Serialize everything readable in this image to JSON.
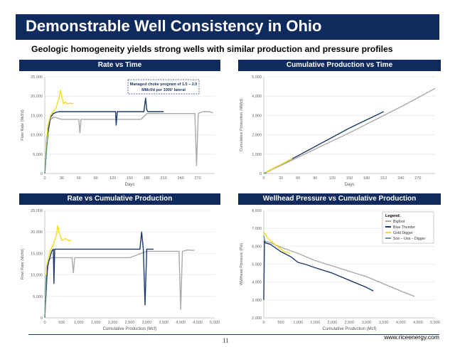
{
  "slide": {
    "title": "Demonstrable Well Consistency in Ohio",
    "subtitle": "Geologic homogeneity yields strong wells with similar production and pressure profiles",
    "page_number": "11",
    "website": "www.riceenergy.com"
  },
  "colors": {
    "navy": "#0f2a5c",
    "bigfoot": "#a9a9a9",
    "blue_thunder": "#1b3a6b",
    "gold_digger": "#f5dc1e",
    "son_uva_digger": "#5f9a96"
  },
  "chart_data": [
    {
      "type": "line",
      "title": "Rate vs Time",
      "xlabel": "Days",
      "ylabel": "Flow Rate (Mcf/d)",
      "xlim": [
        0,
        300
      ],
      "ylim": [
        0,
        25000
      ],
      "xticks": [
        0,
        30,
        60,
        90,
        120,
        150,
        180,
        210,
        240,
        270
      ],
      "xtick_labels": [
        "0",
        "30",
        "60",
        "90",
        "120",
        "150",
        "180",
        "210",
        "240",
        "270"
      ],
      "yticks": [
        0,
        5000,
        10000,
        15000,
        20000,
        25000
      ],
      "ytick_labels": [
        "0",
        "5,000",
        "10,000",
        "15,000",
        "20,000",
        "25,000"
      ],
      "annotation": [
        "Managed choke program of 1.5 – 2.0",
        "MMcf/d per 1000' lateral"
      ],
      "series": [
        {
          "name": "Bigfoot",
          "color": "#a9a9a9",
          "x": [
            0,
            3,
            6,
            10,
            15,
            20,
            25,
            30,
            40,
            50,
            60,
            62,
            64,
            70,
            80,
            90,
            100,
            110,
            120,
            130,
            140,
            150,
            160,
            170,
            180,
            190,
            200,
            210,
            220,
            230,
            240,
            250,
            260,
            265,
            268,
            271,
            275,
            280,
            290,
            297
          ],
          "y": [
            0,
            9000,
            12500,
            14000,
            14500,
            14500,
            14200,
            14000,
            14000,
            14000,
            14000,
            10500,
            14000,
            14000,
            14000,
            14000,
            14000,
            14000,
            14000,
            14000,
            14000,
            14000,
            14000,
            14000,
            15500,
            15500,
            15500,
            15500,
            15500,
            15500,
            15500,
            15500,
            15500,
            15500,
            2000,
            15500,
            15800,
            16000,
            16000,
            15700
          ]
        },
        {
          "name": "Blue Thunder",
          "color": "#1b3a6b",
          "x": [
            0,
            5,
            10,
            15,
            20,
            25,
            30,
            40,
            50,
            60,
            70,
            80,
            90,
            100,
            120,
            125,
            126,
            128,
            140,
            160,
            175,
            178,
            180,
            182,
            185,
            190,
            200,
            210
          ],
          "y": [
            0,
            10000,
            14500,
            15500,
            15800,
            16000,
            16000,
            16000,
            16000,
            16000,
            16000,
            16000,
            16000,
            16000,
            16000,
            16000,
            12500,
            16000,
            16000,
            16000,
            16000,
            19500,
            16500,
            16000,
            16000,
            16000,
            16000,
            16000
          ]
        },
        {
          "name": "Gold Digger",
          "color": "#f5dc1e",
          "x": [
            0,
            5,
            10,
            15,
            20,
            25,
            28,
            30,
            33,
            36,
            40,
            45,
            50
          ],
          "y": [
            0,
            12000,
            15000,
            16000,
            17000,
            19500,
            21500,
            20000,
            18000,
            18500,
            18000,
            18200,
            18000
          ]
        },
        {
          "name": "Son – Uva – Digger",
          "color": "#5f9a96",
          "x": [
            0,
            2,
            4,
            6
          ],
          "y": [
            0,
            4000,
            8000,
            10000
          ]
        }
      ]
    },
    {
      "type": "line",
      "title": "Cumulative Production vs Time",
      "xlabel": "Days",
      "ylabel": "Cumulative Production (MMcf)",
      "xlim": [
        0,
        300
      ],
      "ylim": [
        0,
        5000
      ],
      "xticks": [
        0,
        30,
        60,
        90,
        120,
        150,
        180,
        210,
        240,
        270
      ],
      "xtick_labels": [
        "0",
        "30",
        "60",
        "90",
        "120",
        "150",
        "180",
        "210",
        "240",
        "270"
      ],
      "yticks": [
        0,
        1000,
        2000,
        3000,
        4000,
        5000
      ],
      "ytick_labels": [
        "0",
        "1,000",
        "2,000",
        "3,000",
        "4,000",
        "5,000"
      ],
      "series": [
        {
          "name": "Bigfoot",
          "color": "#a9a9a9",
          "x": [
            0,
            30,
            60,
            100,
            150,
            200,
            250,
            300
          ],
          "y": [
            0,
            420,
            840,
            1400,
            2100,
            2850,
            3600,
            4400
          ]
        },
        {
          "name": "Blue Thunder",
          "color": "#1b3a6b",
          "x": [
            0,
            30,
            60,
            100,
            150,
            210
          ],
          "y": [
            0,
            460,
            920,
            1550,
            2350,
            3200
          ]
        },
        {
          "name": "Gold Digger",
          "color": "#f5dc1e",
          "x": [
            0,
            20,
            40,
            50
          ],
          "y": [
            0,
            300,
            620,
            780
          ]
        },
        {
          "name": "Son – Uva – Digger",
          "color": "#5f9a96",
          "x": [
            0,
            5
          ],
          "y": [
            0,
            30
          ]
        }
      ]
    },
    {
      "type": "line",
      "title": "Rate vs Cumulative Production",
      "xlabel": "Cumulative Production (Mcf)",
      "ylabel": "Flow Rate (Mcf/d)",
      "xlim": [
        0,
        5000
      ],
      "ylim": [
        0,
        25000
      ],
      "xticks": [
        0,
        500,
        1000,
        1500,
        2000,
        2500,
        3000,
        3500,
        4000,
        4500,
        5000
      ],
      "xtick_labels": [
        "0",
        "500",
        "1,000",
        "1,500",
        "2,000",
        "2,500",
        "3,000",
        "3,500",
        "4,000",
        "4,500",
        "5,000"
      ],
      "yticks": [
        0,
        5000,
        10000,
        15000,
        20000,
        25000
      ],
      "ytick_labels": [
        "0",
        "5,000",
        "10,000",
        "15,000",
        "20,000",
        "25,000"
      ],
      "series": [
        {
          "name": "Bigfoot",
          "color": "#a9a9a9",
          "x": [
            0,
            50,
            120,
            200,
            400,
            600,
            800,
            840,
            880,
            1000,
            1500,
            2000,
            2500,
            3000,
            3500,
            3800,
            3950,
            4000,
            4050,
            4200,
            4400
          ],
          "y": [
            0,
            9000,
            13500,
            14000,
            14000,
            14000,
            14000,
            10500,
            14000,
            14000,
            14000,
            14000,
            14000,
            15500,
            15500,
            15500,
            15500,
            2000,
            15500,
            15800,
            15700
          ]
        },
        {
          "name": "Blue Thunder",
          "color": "#1b3a6b",
          "x": [
            0,
            80,
            200,
            250,
            270,
            290,
            400,
            800,
            1000,
            1100,
            1500,
            2000,
            2500,
            2800,
            2850,
            2900,
            2950,
            3000,
            3200
          ],
          "y": [
            0,
            12000,
            15500,
            16000,
            8000,
            16000,
            16000,
            16000,
            16000,
            16000,
            16000,
            16000,
            16000,
            16000,
            20000,
            16000,
            3000,
            16000,
            16000
          ]
        },
        {
          "name": "Gold Digger",
          "color": "#f5dc1e",
          "x": [
            0,
            50,
            150,
            250,
            350,
            380,
            420,
            500,
            600,
            700,
            780
          ],
          "y": [
            0,
            12000,
            15500,
            17000,
            19500,
            21500,
            20000,
            18000,
            18500,
            18000,
            18000
          ]
        },
        {
          "name": "Son – Uva – Digger",
          "color": "#5f9a96",
          "x": [
            0,
            20,
            40
          ],
          "y": [
            0,
            6000,
            10000
          ]
        }
      ]
    },
    {
      "type": "line",
      "title": "Wellhead Pressure vs Cumulative Production",
      "xlabel": "Cumulative Production (Mcf)",
      "ylabel": "Wellhead Pressure (Psi)",
      "xlim": [
        0,
        5000
      ],
      "ylim": [
        2000,
        8000
      ],
      "xticks": [
        0,
        500,
        1000,
        1500,
        2000,
        2500,
        3000,
        3500,
        4000,
        4500,
        5000
      ],
      "xtick_labels": [
        "0",
        "500",
        "1,000",
        "1,500",
        "2,000",
        "2,500",
        "3,000",
        "3,500",
        "4,000",
        "4,500",
        "5,000"
      ],
      "yticks": [
        2000,
        3000,
        4000,
        5000,
        6000,
        7000,
        8000
      ],
      "ytick_labels": [
        "2,000",
        "3,000",
        "4,000",
        "5,000",
        "6,000",
        "7,000",
        "8,000"
      ],
      "legend_title": "Legend:",
      "legend_position": "top-right",
      "series": [
        {
          "name": "Bigfoot",
          "color": "#a9a9a9",
          "x": [
            0,
            200,
            500,
            1000,
            1500,
            2000,
            2500,
            3000,
            3500,
            4000,
            4400
          ],
          "y": [
            6300,
            6200,
            5950,
            5600,
            5200,
            4900,
            4600,
            4300,
            3900,
            3500,
            3200
          ]
        },
        {
          "name": "Blue Thunder",
          "color": "#1b3a6b",
          "x": [
            0,
            20,
            40,
            200,
            500,
            800,
            1000,
            1200,
            1500,
            2000,
            2500,
            3000,
            3200
          ],
          "y": [
            3000,
            6300,
            6200,
            6100,
            5700,
            5400,
            5100,
            5000,
            4800,
            4500,
            4100,
            3700,
            3500
          ]
        },
        {
          "name": "Gold Digger",
          "color": "#f5dc1e",
          "x": [
            0,
            100,
            200,
            400,
            600,
            780
          ],
          "y": [
            6800,
            6500,
            6300,
            6000,
            5700,
            5600
          ]
        },
        {
          "name": "Son – Uva – Digger",
          "color": "#5f9a96",
          "x": [
            0,
            20,
            40
          ],
          "y": [
            6600,
            6400,
            6300
          ]
        }
      ]
    }
  ]
}
